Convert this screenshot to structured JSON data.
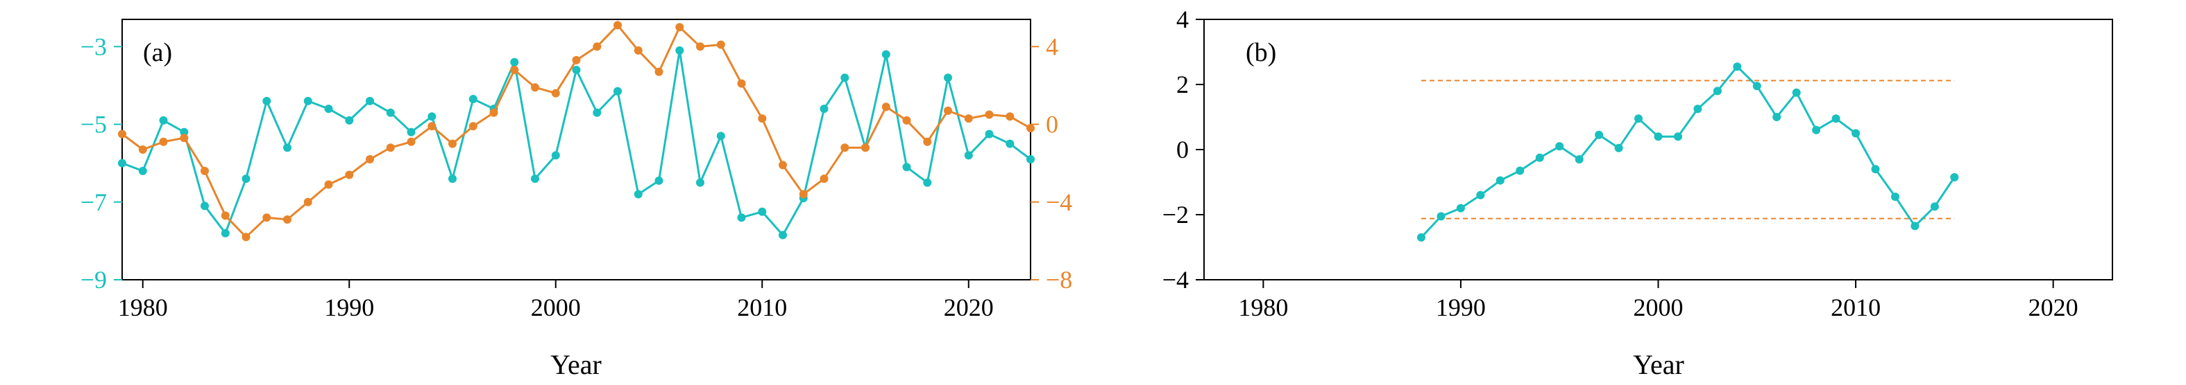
{
  "colors": {
    "teal": "#1ABFBF",
    "orange": "#E8852B",
    "axis": "#000000"
  },
  "chart_data": [
    {
      "type": "line",
      "panel_label": "(a)",
      "xlabel": "Year",
      "xlim": [
        1979,
        2023
      ],
      "xticks": [
        1980,
        1990,
        2000,
        2010,
        2020
      ],
      "ylim": [
        -9,
        -2.3
      ],
      "yticks": [
        -9,
        -7,
        -5,
        -3
      ],
      "y2lim": [
        -8,
        5.4
      ],
      "y2ticks": [
        -8,
        -4,
        0,
        4
      ],
      "grid": false,
      "legend": "none",
      "series": [
        {
          "axis": "left",
          "color": "#1ABFBF",
          "x": [
            1979,
            1980,
            1981,
            1982,
            1983,
            1984,
            1985,
            1986,
            1987,
            1988,
            1989,
            1990,
            1991,
            1992,
            1993,
            1994,
            1995,
            1996,
            1997,
            1998,
            1999,
            2000,
            2001,
            2002,
            2003,
            2004,
            2005,
            2006,
            2007,
            2008,
            2009,
            2010,
            2011,
            2012,
            2013,
            2014,
            2015,
            2016,
            2017,
            2018,
            2019,
            2020,
            2021,
            2022,
            2023
          ],
          "y": [
            -6.0,
            -6.2,
            -4.9,
            -5.2,
            -7.1,
            -7.8,
            -6.4,
            -4.4,
            -5.6,
            -4.4,
            -4.6,
            -4.9,
            -4.4,
            -4.7,
            -5.2,
            -4.8,
            -6.4,
            -4.35,
            -4.6,
            -3.4,
            -6.4,
            -5.8,
            -3.6,
            -4.7,
            -4.15,
            -6.8,
            -6.45,
            -3.1,
            -6.5,
            -5.3,
            -7.4,
            -7.25,
            -7.85,
            -6.9,
            -4.6,
            -3.8,
            -5.6,
            -3.2,
            -6.1,
            -6.5,
            -3.8,
            -5.8,
            -5.25,
            -5.5,
            -5.9
          ]
        },
        {
          "axis": "right",
          "color": "#E8852B",
          "x": [
            1979,
            1980,
            1981,
            1982,
            1983,
            1984,
            1985,
            1986,
            1987,
            1988,
            1989,
            1990,
            1991,
            1992,
            1993,
            1994,
            1995,
            1996,
            1997,
            1998,
            1999,
            2000,
            2001,
            2002,
            2003,
            2004,
            2005,
            2006,
            2007,
            2008,
            2009,
            2010,
            2011,
            2012,
            2013,
            2014,
            2015,
            2016,
            2017,
            2018,
            2019,
            2020,
            2021,
            2022,
            2023
          ],
          "y": [
            -0.5,
            -1.3,
            -0.9,
            -0.7,
            -2.4,
            -4.7,
            -5.8,
            -4.8,
            -4.9,
            -4.0,
            -3.1,
            -2.6,
            -1.8,
            -1.2,
            -0.9,
            -0.1,
            -1.0,
            -0.1,
            0.6,
            2.8,
            1.9,
            1.6,
            3.3,
            4.0,
            5.1,
            3.8,
            2.7,
            5.0,
            4.0,
            4.1,
            2.1,
            0.3,
            -2.1,
            -3.6,
            -2.8,
            -1.2,
            -1.2,
            0.9,
            0.2,
            -0.9,
            0.7,
            0.3,
            0.5,
            0.4,
            -0.2
          ]
        }
      ]
    },
    {
      "type": "line",
      "panel_label": "(b)",
      "xlabel": "Year",
      "xlim": [
        1977,
        2023
      ],
      "xticks": [
        1980,
        1990,
        2000,
        2010,
        2020
      ],
      "ylim": [
        -4,
        4
      ],
      "yticks": [
        -4,
        -2,
        0,
        2,
        4
      ],
      "grid": false,
      "legend": "none",
      "series": [
        {
          "color": "#1ABFBF",
          "x": [
            1988,
            1989,
            1990,
            1991,
            1992,
            1993,
            1994,
            1995,
            1996,
            1997,
            1998,
            1999,
            2000,
            2001,
            2002,
            2003,
            2004,
            2005,
            2006,
            2007,
            2008,
            2009,
            2010,
            2011,
            2012,
            2013,
            2014,
            2015
          ],
          "y": [
            -2.7,
            -2.05,
            -1.8,
            -1.4,
            -0.95,
            -0.65,
            -0.25,
            0.1,
            -0.3,
            0.45,
            0.05,
            0.95,
            0.4,
            0.4,
            1.25,
            1.8,
            2.55,
            1.95,
            1.0,
            1.75,
            0.6,
            0.95,
            0.5,
            -0.6,
            -1.45,
            -2.35,
            -1.75,
            -0.85
          ]
        }
      ],
      "reference_lines": [
        {
          "y": 2.12,
          "x": [
            1988,
            2015
          ],
          "color": "#E8852B",
          "style": "dashed"
        },
        {
          "y": -2.12,
          "x": [
            1988,
            2015
          ],
          "color": "#E8852B",
          "style": "dashed"
        }
      ]
    }
  ]
}
